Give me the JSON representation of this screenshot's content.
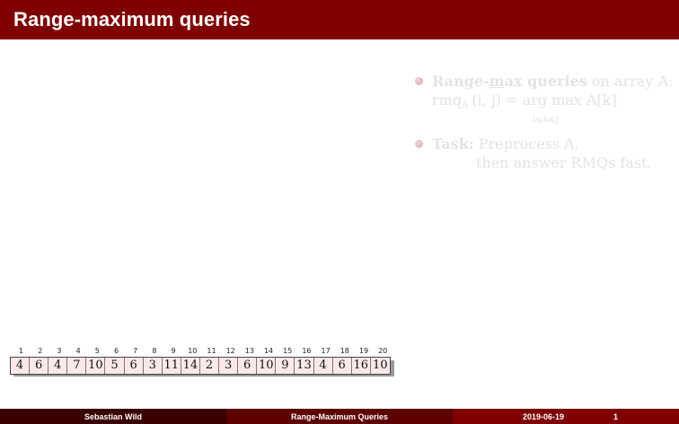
{
  "title": "Range-maximum queries",
  "bullets": {
    "b1_bold": "Range-",
    "b1_bold_u": "m",
    "b1_bold2": "ax queries",
    "b1_rest": " on array A:",
    "formula_lhs": "rmq",
    "formula_sub": "A",
    "formula_args": "(i, j) = arg max A[k]",
    "formula_under": "i⩽k⩽j",
    "b2_bold": "Task:",
    "b2_line1": "Preprocess A,",
    "b2_line2": "then answer RMQs fast."
  },
  "array": {
    "indices": [
      "1",
      "2",
      "3",
      "4",
      "5",
      "6",
      "7",
      "8",
      "9",
      "10",
      "11",
      "12",
      "13",
      "14",
      "15",
      "16",
      "17",
      "18",
      "19",
      "20"
    ],
    "values": [
      "4",
      "6",
      "4",
      "7",
      "10",
      "5",
      "6",
      "3",
      "11",
      "14",
      "2",
      "3",
      "6",
      "10",
      "9",
      "13",
      "4",
      "6",
      "16",
      "10"
    ]
  },
  "footer": {
    "author": "Sebastian Wild",
    "short_title": "Range-Maximum Queries",
    "date": "2019-06-19",
    "page": "1"
  }
}
